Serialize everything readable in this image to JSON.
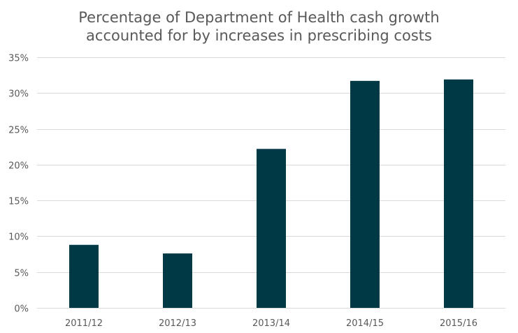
{
  "chart_data": {
    "type": "bar",
    "title_lines": [
      "Percentage of Department of Health cash growth",
      "accounted for by increases in prescribing costs"
    ],
    "categories": [
      "2011/12",
      "2012/13",
      "2013/14",
      "2014/15",
      "2015/16"
    ],
    "values": [
      8.8,
      7.6,
      22.2,
      31.7,
      31.9
    ],
    "ylim": [
      0,
      35
    ],
    "yticks": [
      0,
      5,
      10,
      15,
      20,
      25,
      30,
      35
    ],
    "ytick_labels": [
      "0%",
      "5%",
      "10%",
      "15%",
      "20%",
      "25%",
      "30%",
      "35%"
    ],
    "xlabel": "",
    "ylabel": "",
    "grid": true,
    "legend": "none",
    "bar_color": "#003946",
    "grid_color": "#d9d9d9",
    "text_color": "#595959"
  }
}
